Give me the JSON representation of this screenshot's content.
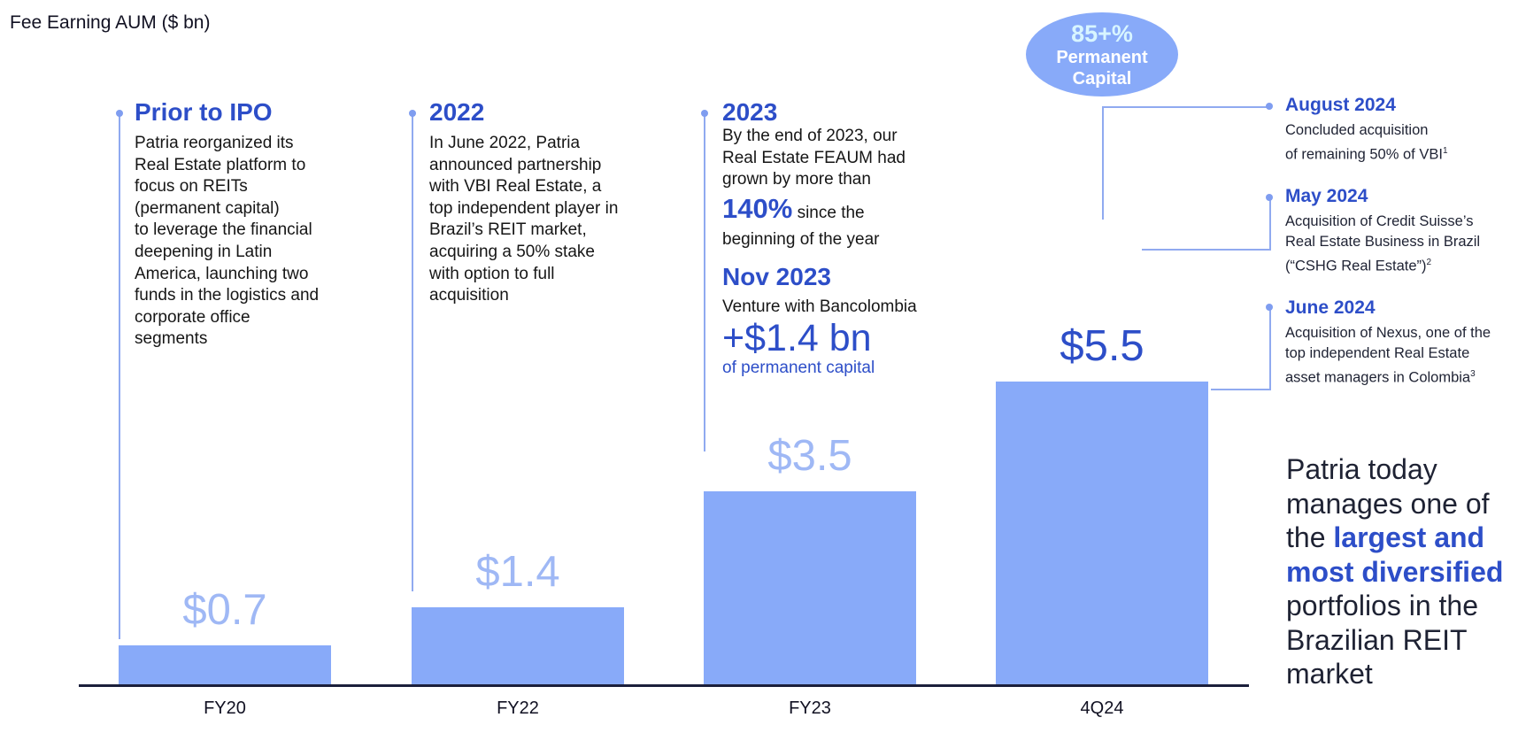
{
  "chart_data": {
    "type": "bar",
    "title": "Fee Earning AUM ($ bn)",
    "categories": [
      "FY20",
      "FY22",
      "FY23",
      "4Q24"
    ],
    "values": [
      0.7,
      1.4,
      3.5,
      5.5
    ],
    "value_labels": [
      "$0.7",
      "$1.4",
      "$3.5",
      "$5.5"
    ],
    "ylim": [
      0,
      6.2
    ],
    "xlabel": "",
    "ylabel": "",
    "grid": false,
    "colors": {
      "bar": "#88aaf9",
      "label": "#9fb8f5",
      "highlight_label": "#2d4ec8",
      "accent": "#2d4ec8"
    }
  },
  "eras": [
    {
      "heading": "Prior to IPO",
      "body": [
        "Patria reorganized its",
        "Real Estate platform to",
        "focus on REITs",
        "(permanent capital)",
        "to leverage the financial",
        "deepening in Latin",
        "America, launching two",
        "funds in the logistics and",
        "corporate office",
        "segments"
      ]
    },
    {
      "heading": "2022",
      "body": [
        "In June 2022, Patria",
        "announced partnership",
        "with VBI Real Estate, a",
        "top independent player in",
        "Brazil’s REIT market,",
        "acquiring a 50% stake",
        "with option to full",
        "acquisition"
      ]
    },
    {
      "heading": "2023",
      "body": [
        "By the end of 2023, our",
        "Real Estate FEAUM had",
        "grown by more than"
      ],
      "big_value": "140%",
      "big_suffix": "since the",
      "tail": "beginning of the year",
      "nov_heading": "Nov 2023",
      "nov_line": "Venture with Bancolombia",
      "nov_big": "+$1.4 bn",
      "nov_sub": "of permanent capital"
    }
  ],
  "badge": {
    "percent": "85+%",
    "line1": "Permanent",
    "line2": "Capital"
  },
  "events": [
    {
      "heading": "August 2024",
      "lines": [
        "Concluded acquisition",
        "of remaining 50% of VBI"
      ],
      "footnote": "1"
    },
    {
      "heading": "May 2024",
      "lines": [
        "Acquisition of Credit Suisse’s",
        "Real Estate Business in Brazil",
        "(“CSHG Real Estate”)"
      ],
      "footnote": "2"
    },
    {
      "heading": "June 2024",
      "lines": [
        "Acquisition of Nexus, one of the",
        "top independent Real Estate",
        "asset managers in Colombia"
      ],
      "footnote": "3"
    }
  ],
  "closing": {
    "part1": "Patria today manages one of the",
    "strong": "largest and most diversified",
    "part2": "portfolios in the Brazilian REIT market"
  }
}
